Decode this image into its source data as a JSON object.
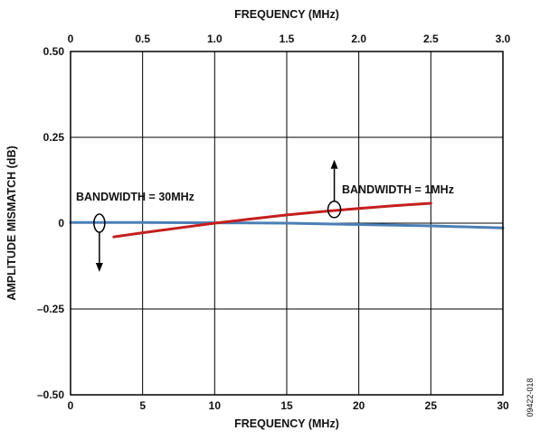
{
  "figure_id": "09422-018",
  "chart_data": {
    "type": "line",
    "xlabel": "FREQUENCY (MHz)",
    "x2label": "FREQUENCY (MHz)",
    "ylabel": "AMPLITUDE MISMATCH (dB)",
    "xlim": [
      0,
      30
    ],
    "ylim": [
      -0.5,
      0.5
    ],
    "grid": true,
    "x_ticks": [
      0,
      5,
      10,
      15,
      20,
      25,
      30
    ],
    "x_tick_labels": [
      "0",
      "5",
      "10",
      "15",
      "20",
      "25",
      "30"
    ],
    "x2_ticks": [
      0,
      0.5,
      1.0,
      1.5,
      2.0,
      2.5,
      3.0
    ],
    "x2_tick_labels": [
      "0",
      "0.5",
      "1.0",
      "1.5",
      "2.0",
      "2.5",
      "3.0"
    ],
    "y_ticks": [
      -0.5,
      -0.25,
      0,
      0.25,
      0.5
    ],
    "y_tick_labels": [
      "–0.50",
      "–0.25",
      "0",
      "0.25",
      "0.50"
    ],
    "series": [
      {
        "name": "BANDWIDTH = 30MHz",
        "axis": "bottom",
        "color": "#4a7fb5",
        "x": [
          0,
          5,
          10,
          15,
          20,
          25,
          30
        ],
        "y": [
          0.002,
          0.002,
          0.001,
          0.0,
          -0.004,
          -0.008,
          -0.014
        ]
      },
      {
        "name": "BANDWIDTH = 1MHz",
        "axis": "top",
        "color": "#c41f1f",
        "x": [
          0.3,
          0.5,
          0.75,
          1.0,
          1.25,
          1.5,
          1.75,
          2.0,
          2.25,
          2.5
        ],
        "y": [
          -0.04,
          -0.028,
          -0.014,
          0.0,
          0.012,
          0.024,
          0.034,
          0.043,
          0.051,
          0.058
        ]
      }
    ],
    "annotations": [
      {
        "text": "BANDWIDTH = 30MHz",
        "series": 0,
        "arrow": "down",
        "marker_x": 2.0,
        "marker_y": 0.0
      },
      {
        "text": "BANDWIDTH = 1MHz",
        "series": 1,
        "arrow": "up",
        "marker_x": 1.83,
        "marker_y": 0.04
      }
    ]
  }
}
